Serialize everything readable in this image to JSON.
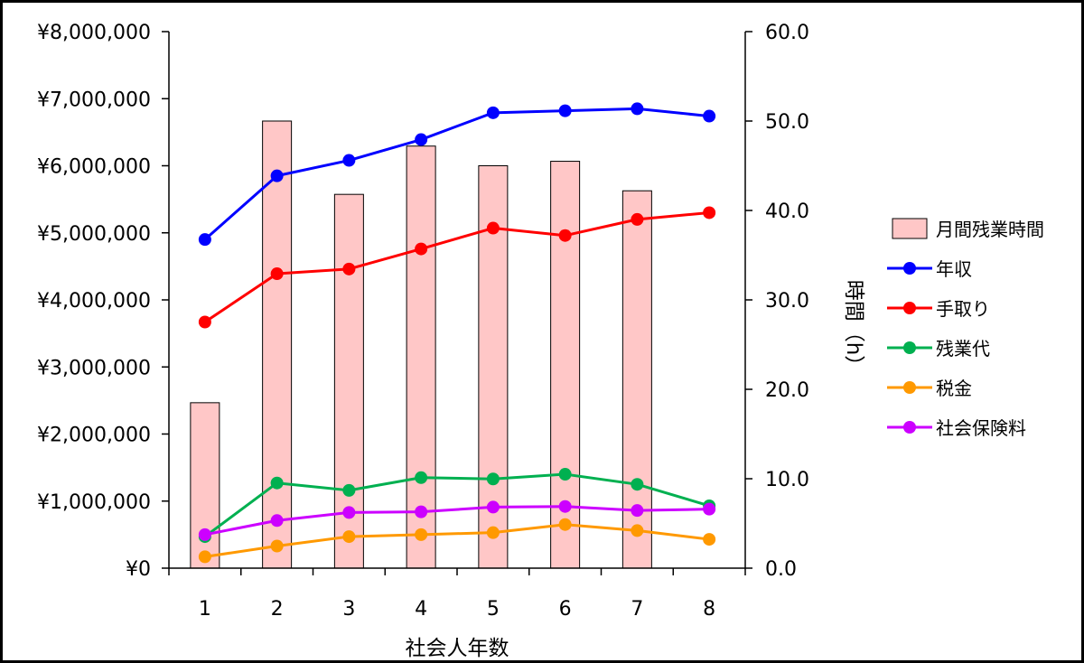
{
  "chart_data": {
    "type": "bar+line",
    "title": "",
    "xlabel": "社会人年数",
    "ylabel_left": "",
    "ylabel_right": "時間（h）",
    "categories": [
      "1",
      "2",
      "3",
      "4",
      "5",
      "6",
      "7",
      "8"
    ],
    "y_left": {
      "lim": [
        0,
        8000000
      ],
      "ticks": [
        0,
        1000000,
        2000000,
        3000000,
        4000000,
        5000000,
        6000000,
        7000000,
        8000000
      ],
      "tick_labels": [
        "¥0",
        "¥1,000,000",
        "¥2,000,000",
        "¥3,000,000",
        "¥4,000,000",
        "¥5,000,000",
        "¥6,000,000",
        "¥7,000,000",
        "¥8,000,000"
      ]
    },
    "y_right": {
      "lim": [
        0,
        60
      ],
      "ticks": [
        0,
        10,
        20,
        30,
        40,
        50,
        60
      ],
      "tick_labels": [
        "0.0",
        "10.0",
        "20.0",
        "30.0",
        "40.0",
        "50.0",
        "60.0"
      ]
    },
    "bars": {
      "name": "月間残業時間",
      "axis": "right",
      "color": "#ffc7c7",
      "values": [
        18.5,
        50.0,
        41.8,
        47.2,
        45.0,
        45.5,
        42.2,
        null
      ]
    },
    "series": [
      {
        "name": "年収",
        "axis": "left",
        "color": "#0000ff",
        "values": [
          4900000,
          5850000,
          6080000,
          6390000,
          6790000,
          6820000,
          6850000,
          6740000
        ]
      },
      {
        "name": "手取り",
        "axis": "left",
        "color": "#ff0000",
        "values": [
          3670000,
          4390000,
          4460000,
          4760000,
          5070000,
          4960000,
          5200000,
          5300000
        ]
      },
      {
        "name": "残業代",
        "axis": "left",
        "color": "#00b050",
        "values": [
          470000,
          1270000,
          1160000,
          1350000,
          1330000,
          1400000,
          1250000,
          930000
        ]
      },
      {
        "name": "税金",
        "axis": "left",
        "color": "#ff9900",
        "values": [
          170000,
          330000,
          470000,
          500000,
          530000,
          650000,
          560000,
          430000
        ]
      },
      {
        "name": "社会保険料",
        "axis": "left",
        "color": "#cc00ff",
        "values": [
          500000,
          710000,
          830000,
          840000,
          910000,
          920000,
          860000,
          880000
        ]
      }
    ],
    "grid": false,
    "legend_position": "right"
  }
}
